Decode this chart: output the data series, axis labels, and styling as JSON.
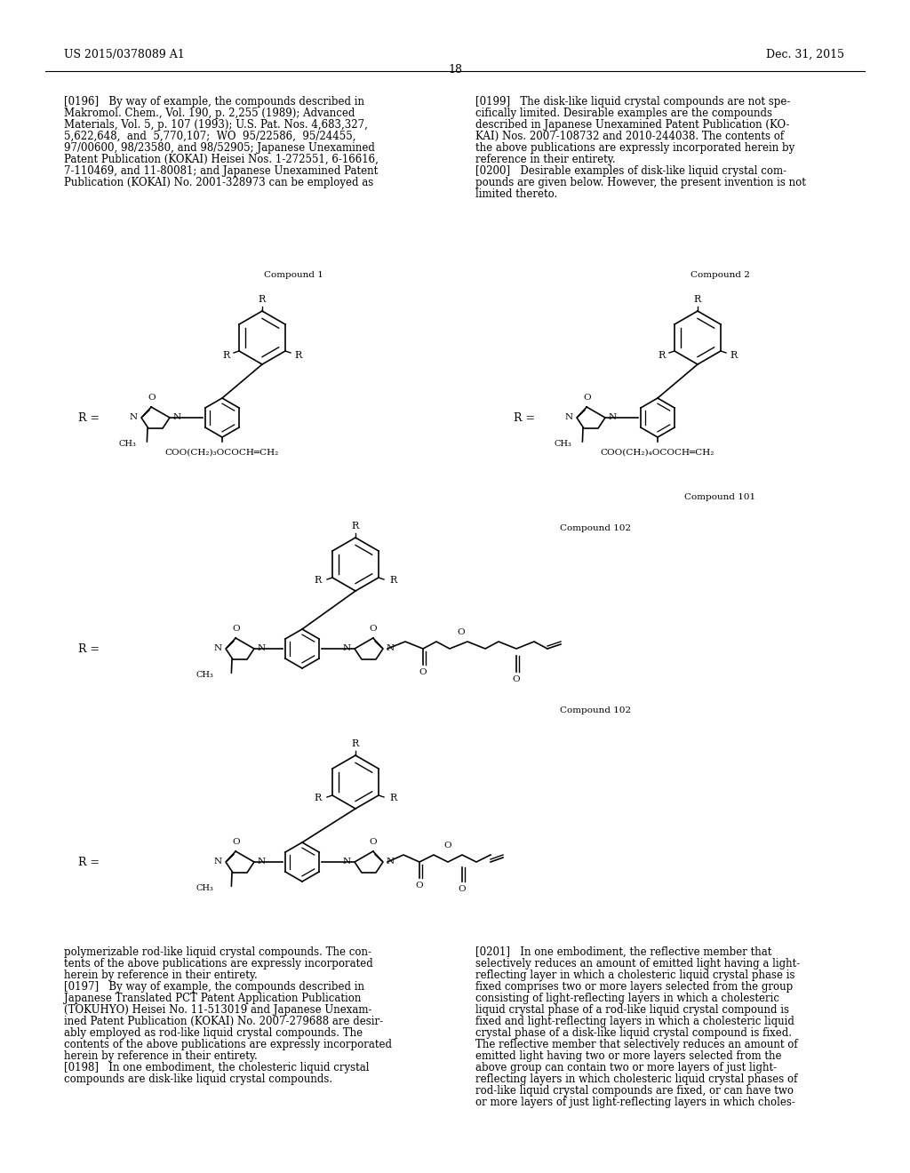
{
  "page_header_left": "US 2015/0378089 A1",
  "page_header_right": "Dec. 31, 2015",
  "page_number": "18",
  "background_color": "#ffffff",
  "text_color": "#000000",
  "font_size_body": 8.5,
  "font_size_small": 7.5,
  "font_size_header": 9,
  "left_col_text": [
    "[0196]   By way of example, the compounds described in",
    "Makromol. Chem., Vol. 190, p. 2,255 (1989); Advanced",
    "Materials, Vol. 5, p. 107 (1993); U.S. Pat. Nos. 4,683,327,",
    "5,622,648,  and  5,770,107;  WO  95/22586,  95/24455,",
    "97/00600, 98/23580, and 98/52905; Japanese Unexamined",
    "Patent Publication (KOKAI) Heisei Nos. 1-272551, 6-16616,",
    "7-110469, and 11-80081; and Japanese Unexamined Patent",
    "Publication (KOKAI) No. 2001-328973 can be employed as"
  ],
  "right_col_text": [
    "[0199]   The disk-like liquid crystal compounds are not spe-",
    "cifically limited. Desirable examples are the compounds",
    "described in Japanese Unexamined Patent Publication (KO-",
    "KAI) Nos. 2007-108732 and 2010-244038. The contents of",
    "the above publications are expressly incorporated herein by",
    "reference in their entirety.",
    "[0200]   Desirable examples of disk-like liquid crystal com-",
    "pounds are given below. However, the present invention is not",
    "limited thereto."
  ],
  "bottom_left_text": [
    "polymerizable rod-like liquid crystal compounds. The con-",
    "tents of the above publications are expressly incorporated",
    "herein by reference in their entirety.",
    "[0197]   By way of example, the compounds described in",
    "Japanese Translated PCT Patent Application Publication",
    "(TOKUHYO) Heisei No. 11-513019 and Japanese Unexam-",
    "ined Patent Publication (KOKAI) No. 2007-279688 are desir-",
    "ably employed as rod-like liquid crystal compounds. The",
    "contents of the above publications are expressly incorporated",
    "herein by reference in their entirety.",
    "[0198]   In one embodiment, the cholesteric liquid crystal",
    "compounds are disk-like liquid crystal compounds."
  ],
  "bottom_right_text": [
    "[0201]   In one embodiment, the reflective member that",
    "selectively reduces an amount of emitted light having a light-",
    "reflecting layer in which a cholesteric liquid crystal phase is",
    "fixed comprises two or more layers selected from the group",
    "consisting of light-reflecting layers in which a cholesteric",
    "liquid crystal phase of a rod-like liquid crystal compound is",
    "fixed and light-reflecting layers in which a cholesteric liquid",
    "crystal phase of a disk-like liquid crystal compound is fixed.",
    "The reflective member that selectively reduces an amount of",
    "emitted light having two or more layers selected from the",
    "above group can contain two or more layers of just light-",
    "reflecting layers in which cholesteric liquid crystal phases of",
    "rod-like liquid crystal compounds are fixed, or can have two",
    "or more layers of just light-reflecting layers in which choles-"
  ]
}
